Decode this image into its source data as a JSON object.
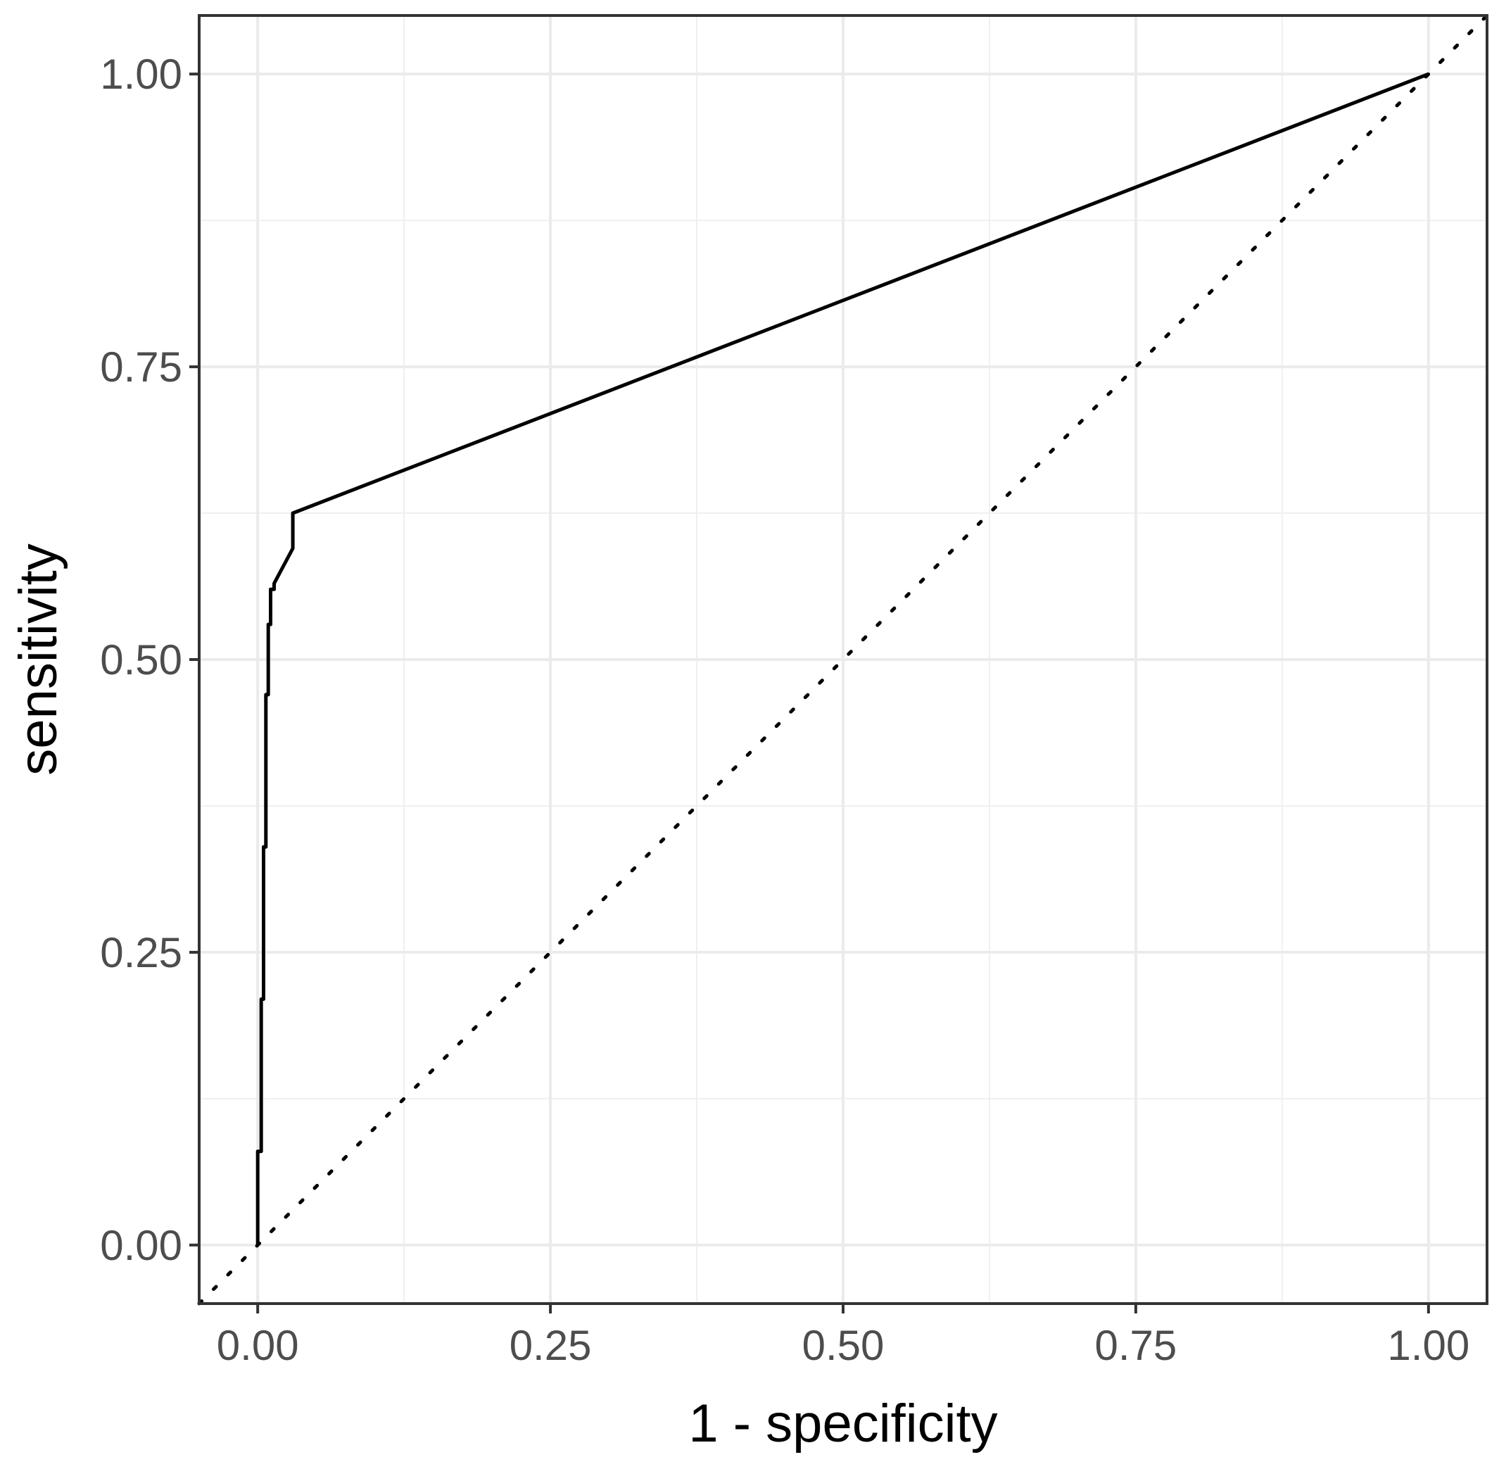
{
  "chart_data": {
    "type": "line",
    "title": "",
    "xlabel": "1 - specificity",
    "ylabel": "sensitivity",
    "xlim": [
      -0.05,
      1.05
    ],
    "ylim": [
      -0.05,
      1.05
    ],
    "x_ticks": [
      0,
      0.25,
      0.5,
      0.75,
      1
    ],
    "x_tick_labels": [
      "0.00",
      "0.25",
      "0.50",
      "0.75",
      "1.00"
    ],
    "y_ticks": [
      0,
      0.25,
      0.5,
      0.75,
      1
    ],
    "y_tick_labels": [
      "0.00",
      "0.25",
      "0.50",
      "0.75",
      "1.00"
    ],
    "grid": true,
    "series": [
      {
        "style": "solid",
        "color": "#000000",
        "x": [
          0.0,
          0.0,
          0.003,
          0.003,
          0.005,
          0.005,
          0.007,
          0.007,
          0.009,
          0.009,
          0.011,
          0.011,
          0.014,
          0.014,
          0.03,
          0.03,
          1.0
        ],
        "y": [
          0.0,
          0.08,
          0.08,
          0.21,
          0.21,
          0.34,
          0.34,
          0.47,
          0.47,
          0.53,
          0.53,
          0.56,
          0.56,
          0.565,
          0.595,
          0.625,
          1.0
        ]
      },
      {
        "style": "dotted",
        "color": "#000000",
        "reference_line": "y = x"
      }
    ]
  }
}
